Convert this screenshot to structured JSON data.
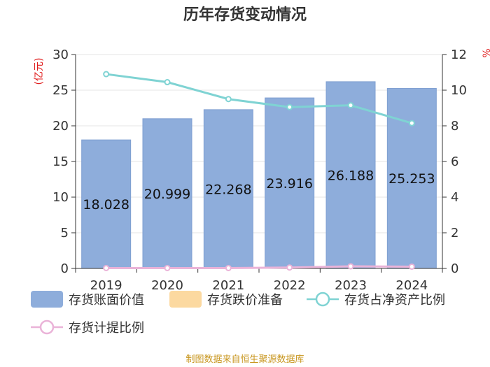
{
  "chart_data": {
    "type": "bar",
    "title": "历年存货变动情况",
    "categories": [
      "2019",
      "2020",
      "2021",
      "2022",
      "2023",
      "2024"
    ],
    "series": [
      {
        "name": "存货账面价值",
        "kind": "bar",
        "axis": "left",
        "values": [
          18.028,
          20.999,
          22.268,
          23.916,
          26.188,
          25.253
        ]
      },
      {
        "name": "存货跌价准备",
        "kind": "bar",
        "axis": "left",
        "values": [
          0,
          0,
          0,
          0,
          0,
          0
        ]
      },
      {
        "name": "存货占净资产比例",
        "kind": "line",
        "axis": "right",
        "values": [
          10.9,
          10.45,
          9.5,
          9.05,
          9.15,
          8.15
        ]
      },
      {
        "name": "存货计提比例",
        "kind": "line",
        "axis": "right",
        "values": [
          0.02,
          0.02,
          0.02,
          0.05,
          0.12,
          0.1
        ]
      }
    ],
    "bar_labels": [
      "18.028",
      "20.999",
      "22.268",
      "23.916",
      "26.188",
      "25.253"
    ],
    "y_left": {
      "label": "(亿元)",
      "min": 0,
      "max": 30,
      "ticks": [
        "0",
        "5",
        "10",
        "15",
        "20",
        "25",
        "30"
      ]
    },
    "y_right": {
      "label": "%",
      "min": 0,
      "max": 12,
      "ticks": [
        "0",
        "2",
        "4",
        "6",
        "8",
        "10",
        "12"
      ]
    },
    "grid": true,
    "legend_position": "bottom-left"
  },
  "colors": {
    "bar": "#8eaddb",
    "bar_stroke": "#7f9fd1",
    "reserve": "#fcd9a0",
    "ratio_line": "#7fd3d3",
    "provision_line": "#eab3d8",
    "grid": "#e6e6e6",
    "axis": "#333333"
  },
  "source": "制图数据来自恒生聚源数据库"
}
